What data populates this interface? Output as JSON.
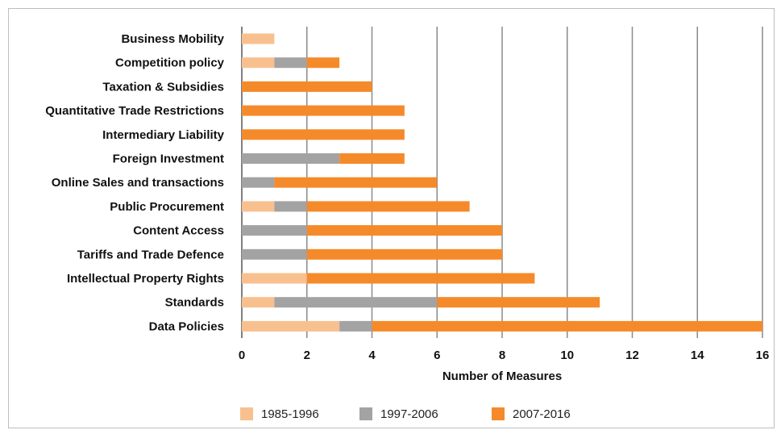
{
  "chart_data": {
    "type": "bar",
    "orientation": "horizontal",
    "stacked": true,
    "categories": [
      "Business Mobility",
      "Competition policy",
      "Taxation & Subsidies",
      "Quantitative Trade Restrictions",
      "Intermediary Liability",
      "Foreign Investment",
      "Online Sales and transactions",
      "Public Procurement",
      "Content Access",
      "Tariffs and Trade Defence",
      "Intellectual Property Rights",
      "Standards",
      "Data Policies"
    ],
    "series": [
      {
        "name": "1985-1996",
        "color": "#f9c08f",
        "values": [
          1,
          1,
          0,
          0,
          0,
          0,
          0,
          1,
          0,
          0,
          2,
          1,
          3
        ]
      },
      {
        "name": "1997-2006",
        "color": "#a3a3a3",
        "values": [
          0,
          1,
          0,
          0,
          0,
          3,
          1,
          1,
          2,
          2,
          0,
          5,
          1
        ]
      },
      {
        "name": "2007-2016",
        "color": "#f58a2b",
        "values": [
          0,
          1,
          4,
          5,
          5,
          2,
          5,
          5,
          6,
          6,
          7,
          5,
          12
        ]
      }
    ],
    "xlabel": "Number of Measures",
    "xlim": [
      0,
      16
    ],
    "xticks": [
      0,
      2,
      4,
      6,
      8,
      10,
      12,
      14,
      16
    ],
    "grid": true,
    "legend_position": "bottom"
  }
}
